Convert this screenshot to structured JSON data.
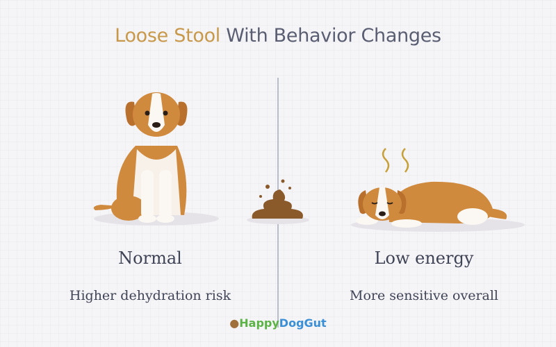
{
  "title": {
    "highlight": "Loose Stool",
    "rest": " With Behavior Changes"
  },
  "left": {
    "heading": "Normal",
    "caption": "Higher dehydration risk"
  },
  "right": {
    "heading": "Low energy",
    "caption": "More sensitive overall"
  },
  "logo": {
    "part1": "Happy",
    "part2": "DogGut"
  },
  "colors": {
    "title_accent": "#c8994a",
    "title_text": "#5a5e72",
    "logo_green": "#5cb345",
    "logo_blue": "#3a8fd6",
    "dog_fur": "#d08a3e"
  },
  "icons": [
    "sitting-dog-illustration",
    "stool-illustration",
    "lying-dog-illustration",
    "stink-lines-icon",
    "logo-dog-icon"
  ]
}
